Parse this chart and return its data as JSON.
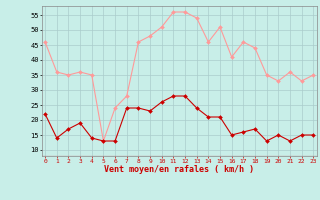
{
  "hours": [
    0,
    1,
    2,
    3,
    4,
    5,
    6,
    7,
    8,
    9,
    10,
    11,
    12,
    13,
    14,
    15,
    16,
    17,
    18,
    19,
    20,
    21,
    22,
    23
  ],
  "wind_avg": [
    22,
    14,
    17,
    19,
    14,
    13,
    13,
    24,
    24,
    23,
    26,
    28,
    28,
    24,
    21,
    21,
    15,
    16,
    17,
    13,
    15,
    13,
    15,
    15
  ],
  "wind_gust": [
    46,
    36,
    35,
    36,
    35,
    13,
    24,
    28,
    46,
    48,
    51,
    56,
    56,
    54,
    46,
    51,
    41,
    46,
    44,
    35,
    33,
    36,
    33,
    35
  ],
  "bg_color": "#c8eee8",
  "grid_color": "#aacccc",
  "avg_color": "#cc0000",
  "gust_color": "#ff9999",
  "xlabel": "Vent moyen/en rafales ( km/h )",
  "xlabel_color": "#cc0000",
  "ylim": [
    8,
    58
  ],
  "yticks": [
    10,
    15,
    20,
    25,
    30,
    35,
    40,
    45,
    50,
    55
  ],
  "xticks": [
    0,
    1,
    2,
    3,
    4,
    5,
    6,
    7,
    8,
    9,
    10,
    11,
    12,
    13,
    14,
    15,
    16,
    17,
    18,
    19,
    20,
    21,
    22,
    23
  ]
}
